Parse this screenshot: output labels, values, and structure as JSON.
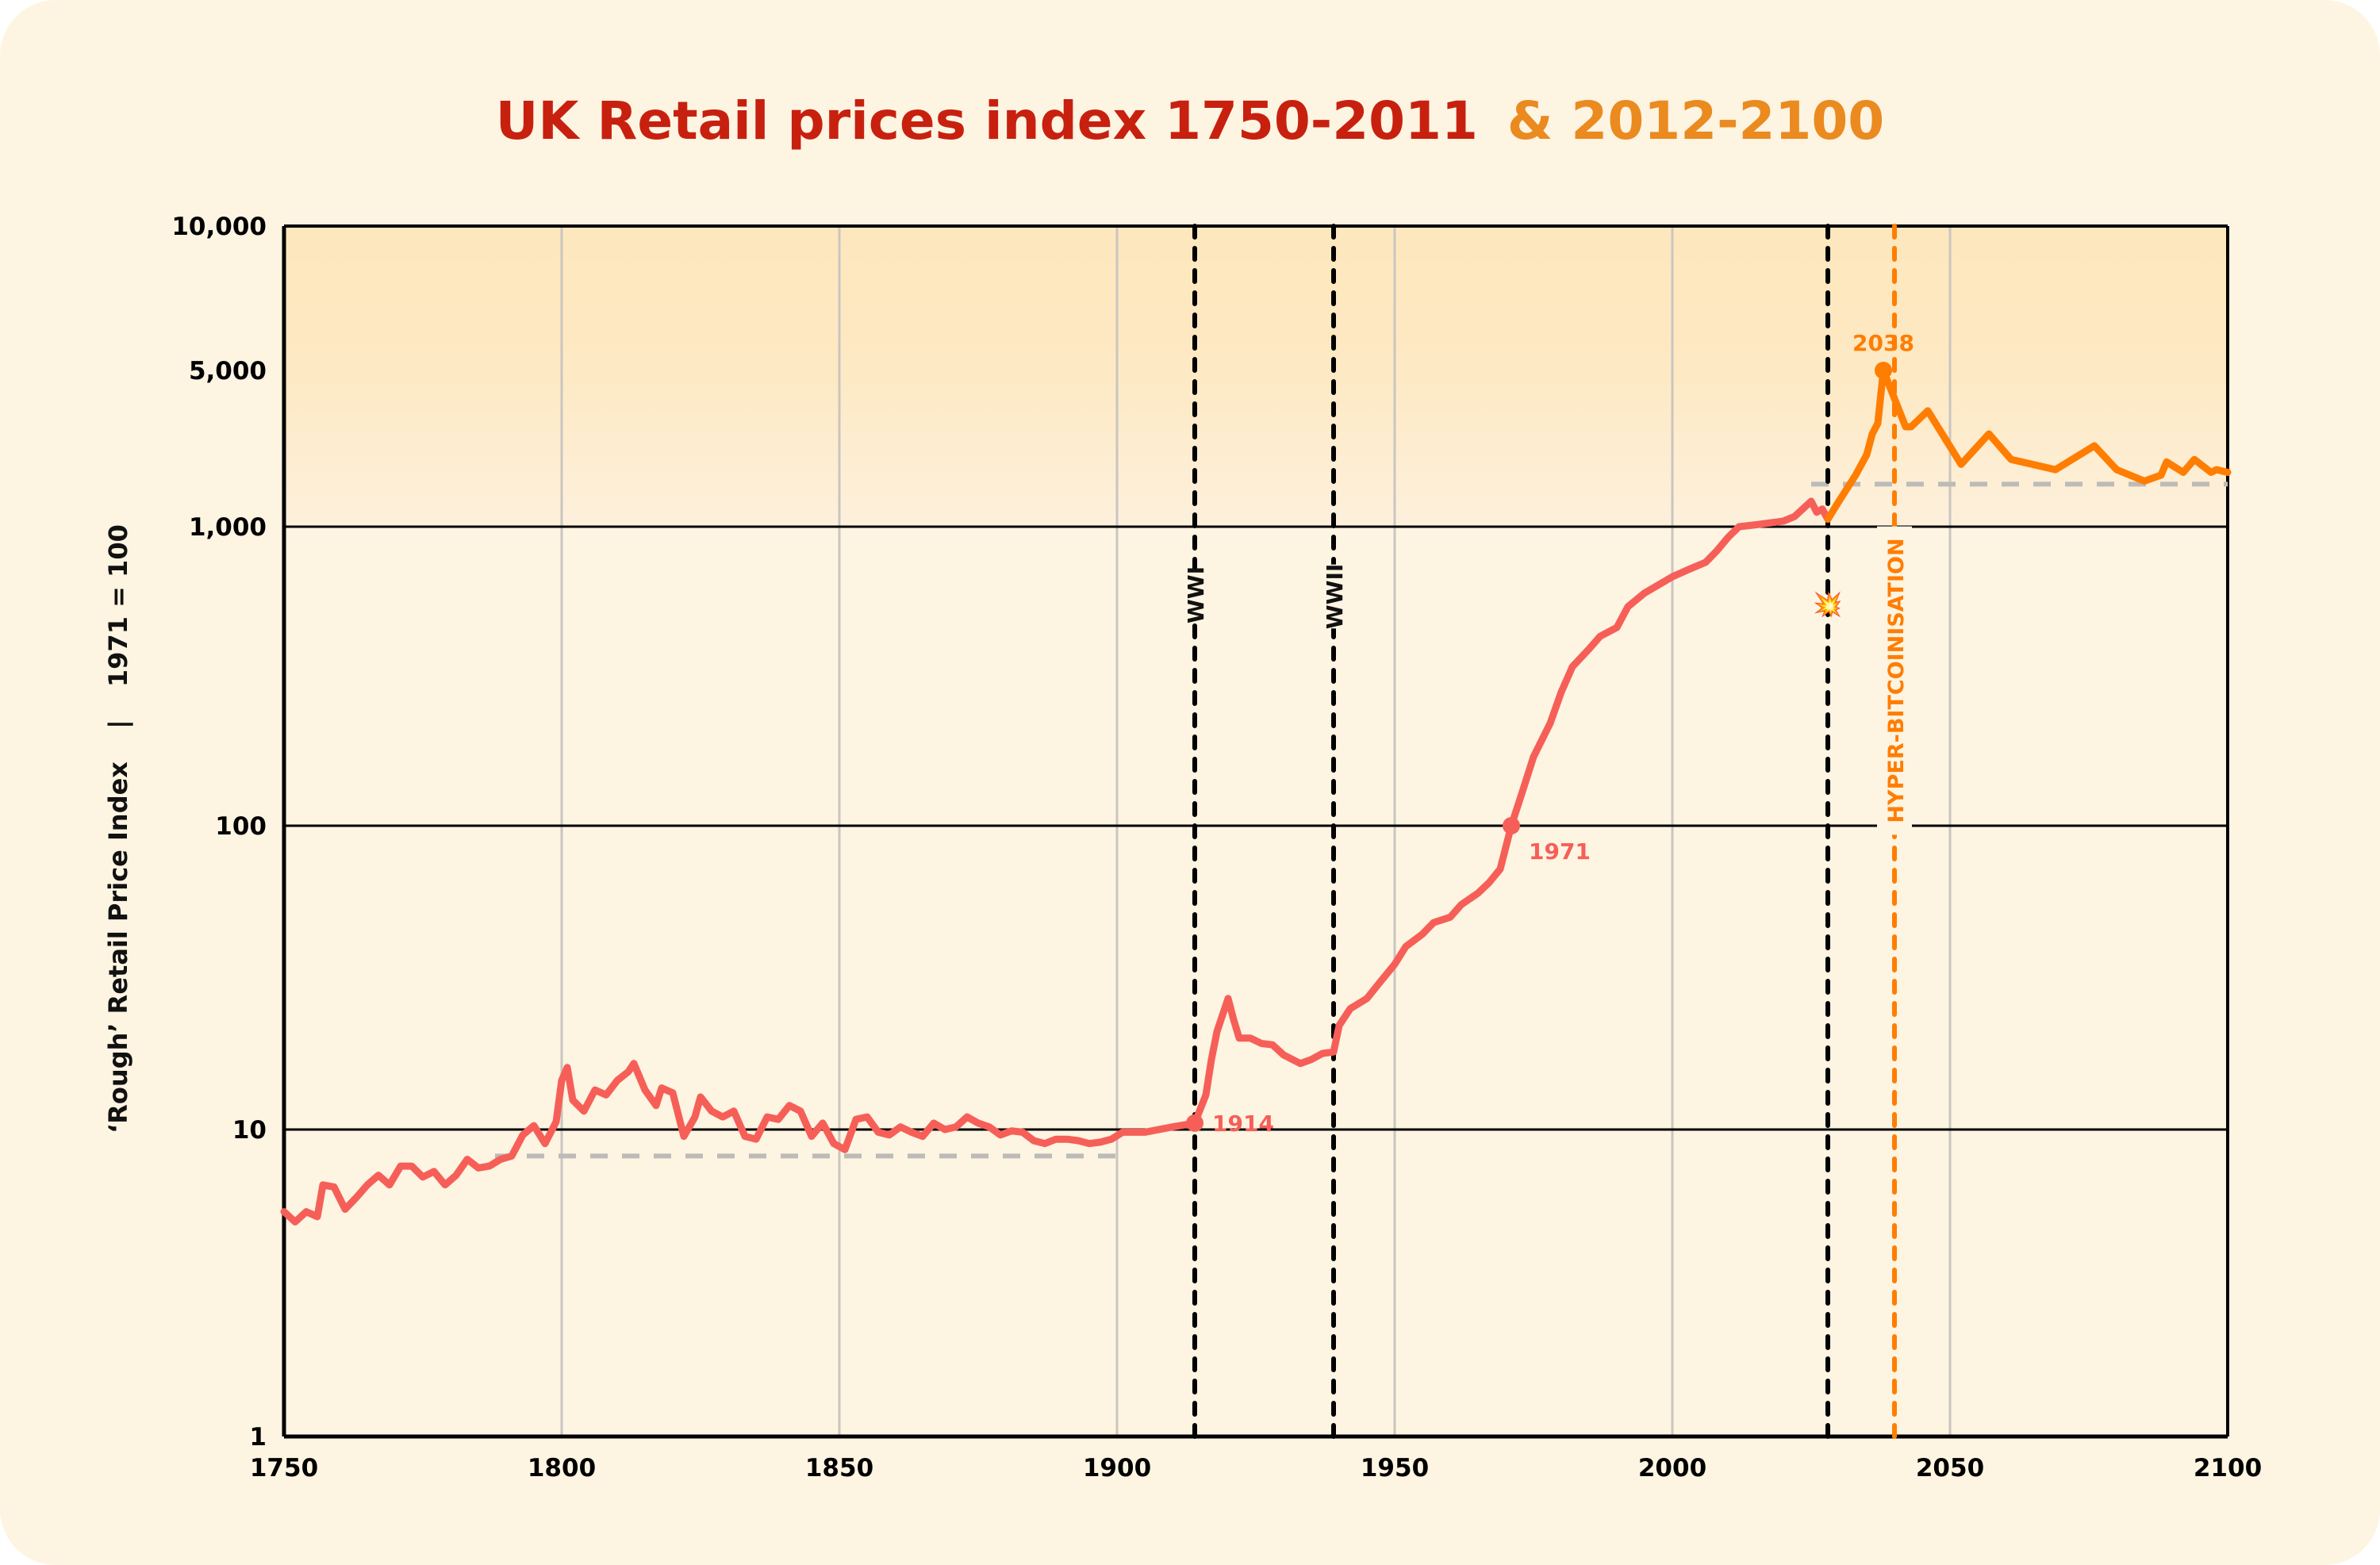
{
  "chart_data": {
    "type": "line",
    "title": {
      "part1": "UK Retail prices index 1750-2011",
      "part2": "& 2012-2100"
    },
    "ylabel": "‘Rough’ Retail Price Index",
    "ylabel_separator": "|",
    "ylabel_note": "1971 = 100",
    "xlabel": "",
    "x_ticks": [
      "1750",
      "1800",
      "1850",
      "1900",
      "1950",
      "2000",
      "2050",
      "2100"
    ],
    "y_ticks": [
      "1",
      "10",
      "100",
      "1,000",
      "5,000",
      "10,000"
    ],
    "y_tick_values": [
      1,
      10,
      100,
      1000,
      5000,
      10000
    ],
    "y_scale": "log",
    "xlim": [
      1750,
      2100
    ],
    "ylim": [
      1,
      10000
    ],
    "grid": "vertical gridlines every 50 years; horizontal lines at 10, 100, 1,000",
    "colors": {
      "title_main": "#c8200f",
      "title_projection": "#ea8a1f",
      "historical": "#f65f58",
      "projection": "#ff7d00",
      "shading": "#fde7bd"
    },
    "series": [
      {
        "key": "historical",
        "x": [
          1750,
          1752,
          1754,
          1756,
          1757,
          1759,
          1761,
          1763,
          1765,
          1767,
          1769,
          1771,
          1773,
          1775,
          1777,
          1779,
          1781,
          1783,
          1785,
          1787,
          1789,
          1791,
          1793,
          1795,
          1797,
          1799,
          1800,
          1801,
          1802,
          1804,
          1806,
          1808,
          1810,
          1812,
          1813,
          1815,
          1817,
          1818,
          1820,
          1822,
          1824,
          1825,
          1827,
          1829,
          1831,
          1833,
          1835,
          1837,
          1839,
          1841,
          1843,
          1845,
          1847,
          1849,
          1851,
          1853,
          1855,
          1857,
          1859,
          1861,
          1863,
          1865,
          1867,
          1869,
          1871,
          1873,
          1875,
          1877,
          1879,
          1881,
          1883,
          1885,
          1887,
          1889,
          1891,
          1893,
          1895,
          1897,
          1899,
          1901,
          1905,
          1910,
          1914,
          1916,
          1917,
          1918,
          1920,
          1921,
          1922,
          1924,
          1926,
          1928,
          1930,
          1933,
          1935,
          1937,
          1939,
          1940,
          1942,
          1945,
          1947,
          1950,
          1952,
          1955,
          1957,
          1960,
          1962,
          1965,
          1967,
          1969,
          1971,
          1973,
          1975,
          1978,
          1980,
          1982,
          1985,
          1987,
          1990,
          1992,
          1995,
          2000,
          2003,
          2006,
          2008,
          2010,
          2012,
          2015,
          2020,
          2022,
          2025,
          2026,
          2027,
          2028
        ],
        "y": [
          5.4,
          5.0,
          5.4,
          5.2,
          6.6,
          6.5,
          5.5,
          6.0,
          6.6,
          7.1,
          6.6,
          7.6,
          7.6,
          7.0,
          7.3,
          6.6,
          7.1,
          8.0,
          7.5,
          7.6,
          8.0,
          8.2,
          9.6,
          10.3,
          9.0,
          10.6,
          14.5,
          16,
          12.5,
          11.5,
          13.5,
          13,
          14.5,
          15.5,
          16.5,
          13.5,
          12,
          13.7,
          13.2,
          9.5,
          11,
          12.8,
          11.5,
          11,
          11.5,
          9.5,
          9.3,
          11,
          10.8,
          12,
          11.5,
          9.5,
          10.5,
          9,
          8.6,
          10.8,
          11,
          9.8,
          9.6,
          10.2,
          9.8,
          9.5,
          10.5,
          10,
          10.2,
          11,
          10.5,
          10.2,
          9.6,
          9.9,
          9.8,
          9.2,
          9,
          9.3,
          9.3,
          9.2,
          9,
          9.1,
          9.3,
          9.8,
          9.8,
          10.2,
          10.5,
          13,
          17,
          21,
          27,
          23,
          20,
          20,
          19.2,
          19,
          17.6,
          16.5,
          17,
          17.8,
          18,
          22,
          25,
          27,
          30,
          35,
          40,
          44,
          48,
          50,
          55,
          60,
          65,
          72,
          100,
          130,
          170,
          220,
          280,
          340,
          390,
          430,
          460,
          540,
          600,
          680,
          720,
          760,
          830,
          920,
          1000,
          1020,
          1060,
          1110,
          1300,
          1160,
          1200,
          1080
        ]
      },
      {
        "key": "projection",
        "x": [
          2028,
          2030,
          2033,
          2035,
          2036,
          2037,
          2038,
          2042,
          2043,
          2046,
          2052,
          2057,
          2061,
          2069,
          2076,
          2080,
          2085,
          2088,
          2089,
          2092,
          2094,
          2097,
          2098,
          2100
        ],
        "y": [
          1080,
          1300,
          1700,
          2100,
          2600,
          2900,
          5000,
          2800,
          2800,
          3300,
          1900,
          2600,
          2000,
          1800,
          2300,
          1800,
          1600,
          1700,
          1950,
          1750,
          2000,
          1750,
          1800,
          1750
        ]
      }
    ],
    "reference_lines": [
      {
        "type": "horizontal-dashed",
        "from": 1788,
        "to": 1900,
        "value": 8.2
      },
      {
        "type": "horizontal-dashed",
        "from": 2025,
        "to": 2100,
        "value": 1550
      }
    ],
    "annotations": [
      {
        "key": "wwi",
        "label": "WWI",
        "x": 1914,
        "style": "black-dotted-vertical"
      },
      {
        "key": "wwii",
        "label": "WWII",
        "x": 1939,
        "style": "black-dotted-vertical"
      },
      {
        "key": "crash",
        "label": "💥",
        "x": 2028,
        "style": "black-dotted-vertical"
      },
      {
        "key": "hyper",
        "label": "HYPER-BITCOINISATION",
        "x": 2040,
        "style": "orange-dotted-vertical"
      },
      {
        "key": "p1914",
        "label": "1914",
        "x": 1914,
        "y": 10.5,
        "series": "historical"
      },
      {
        "key": "p1971",
        "label": "1971",
        "x": 1971,
        "y": 100,
        "series": "historical"
      },
      {
        "key": "p2038",
        "label": "2038",
        "x": 2038,
        "y": 5000,
        "series": "projection"
      }
    ]
  }
}
